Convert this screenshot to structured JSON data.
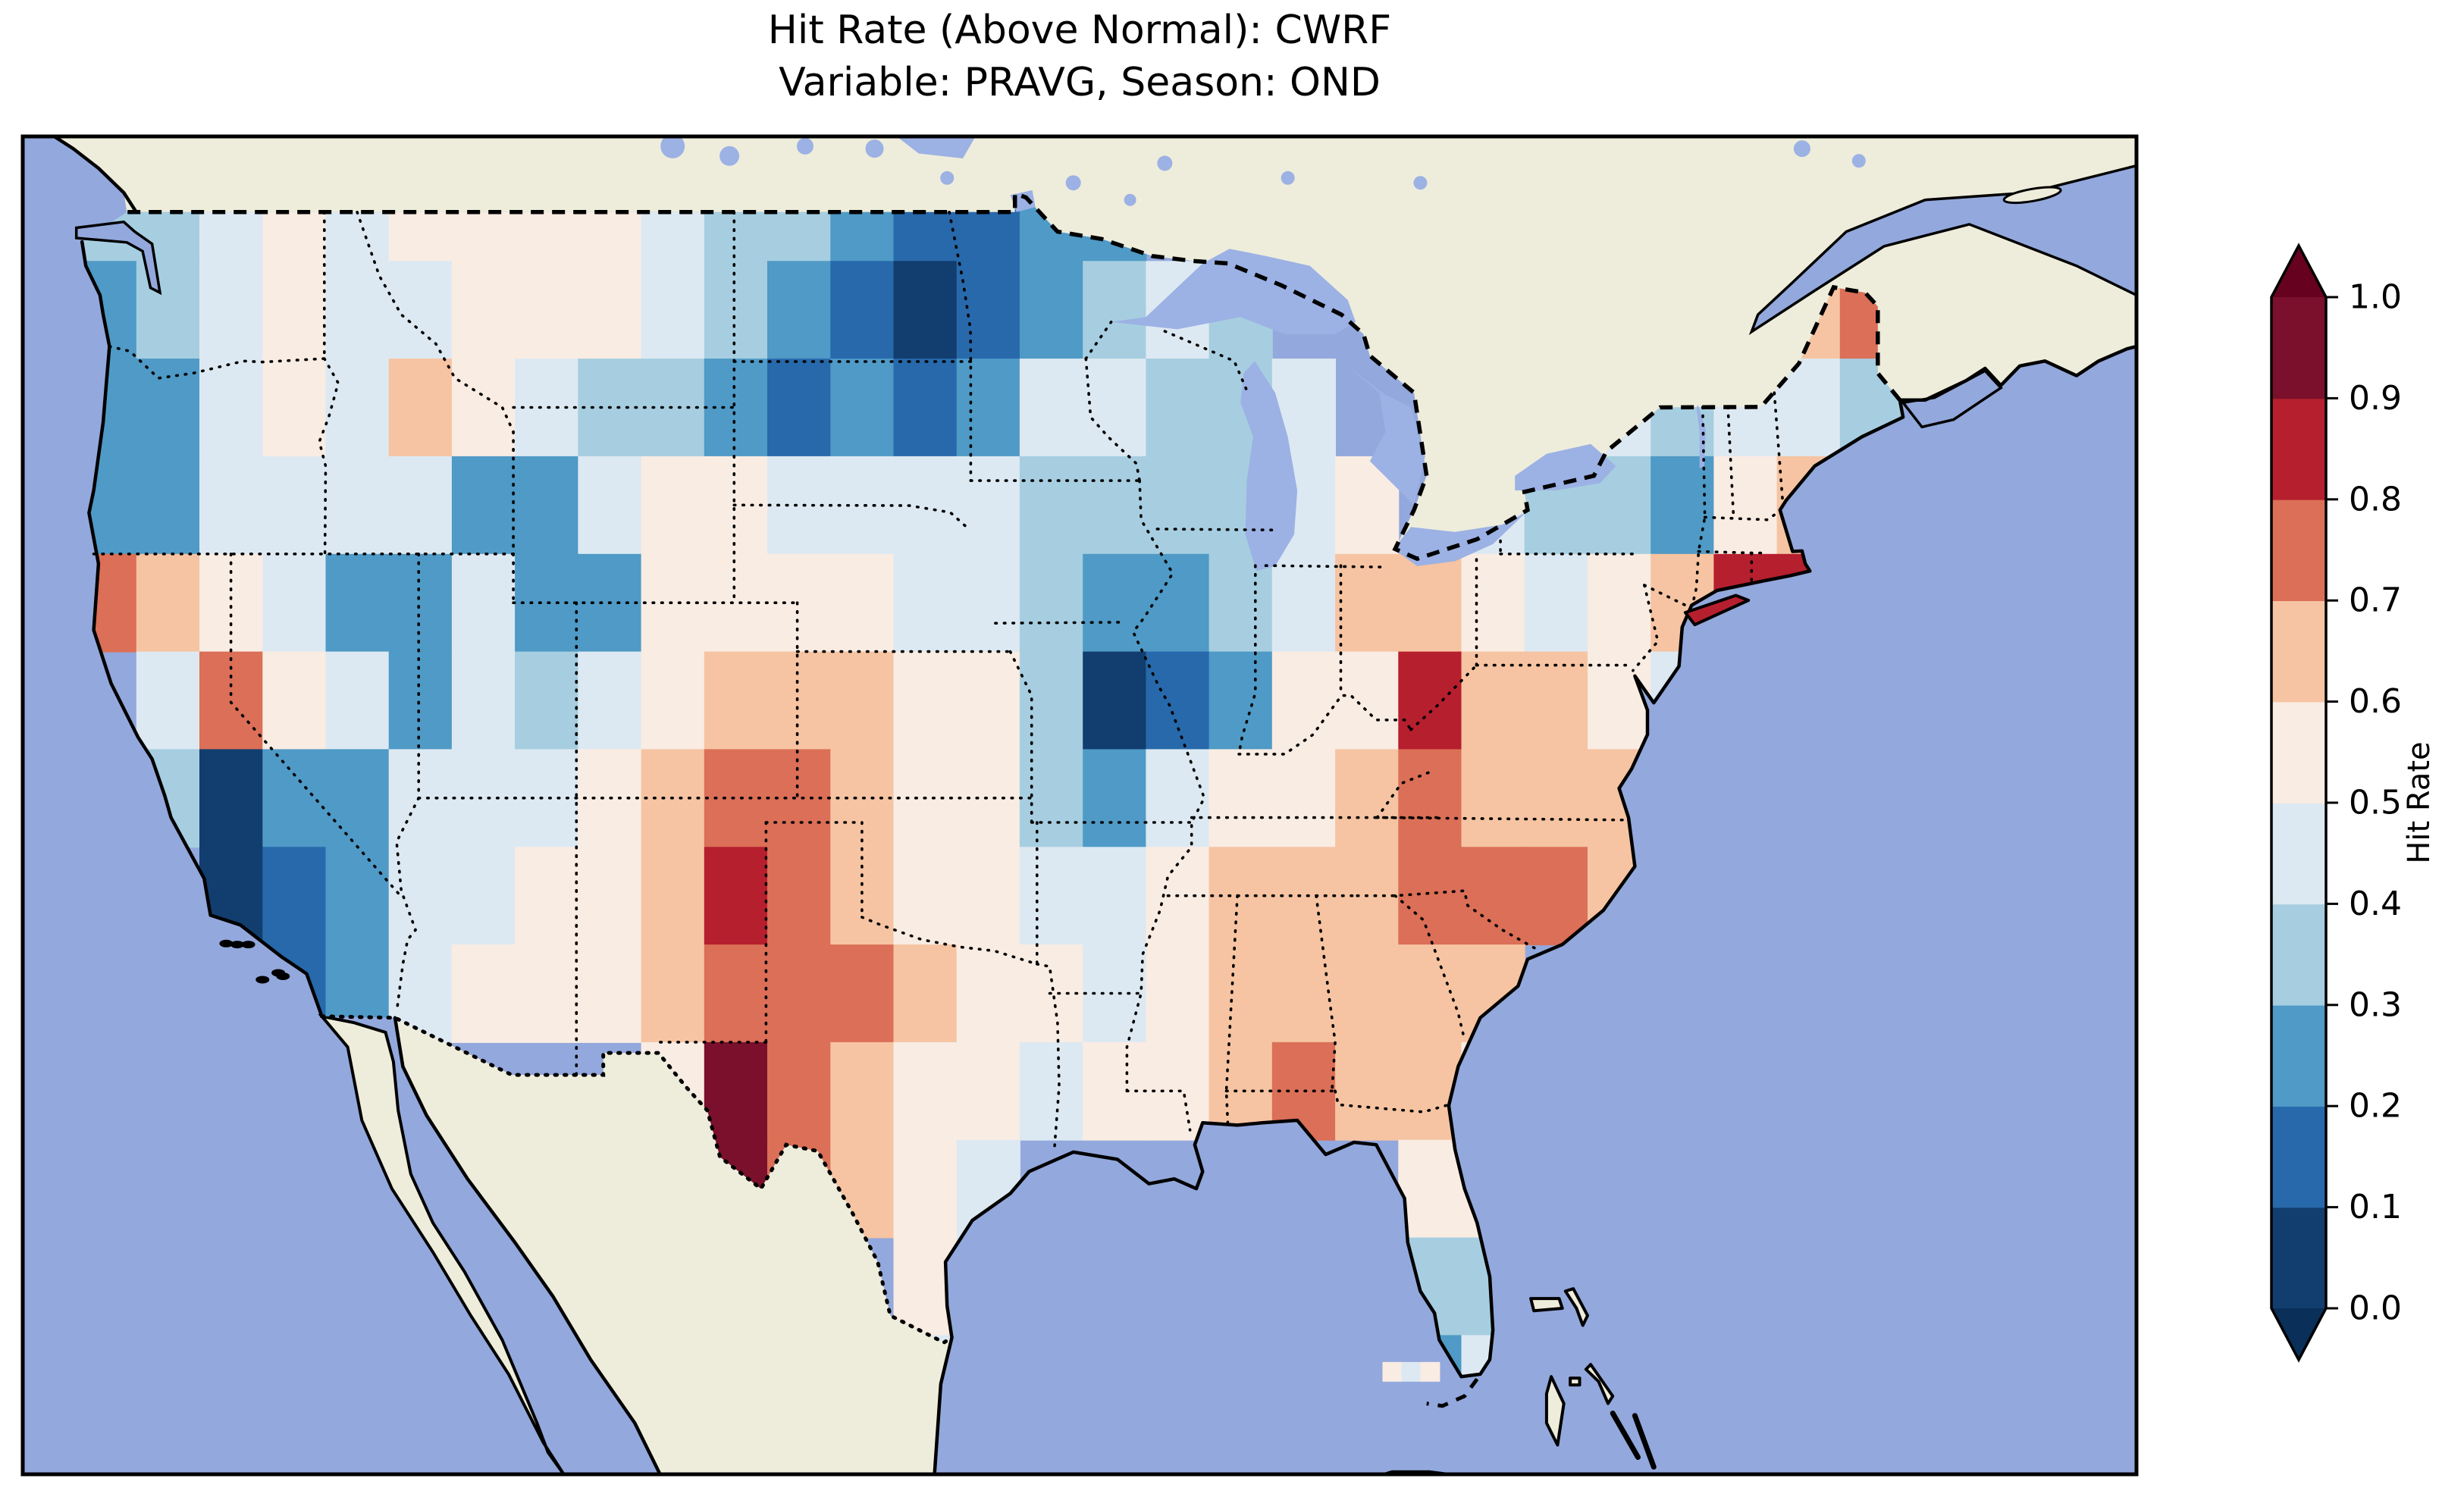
{
  "title": {
    "line1": "Hit Rate (Above Normal): CWRF",
    "line2": "Variable: PRAVG, Season: OND"
  },
  "chart_data": {
    "type": "heatmap",
    "title": "Hit Rate (Above Normal): CWRF",
    "subtitle": "Variable: PRAVG, Season: OND",
    "model": "CWRF",
    "variable": "PRAVG",
    "season": "OND",
    "metric": "Hit Rate (Above Normal)",
    "colorbar": {
      "label": "Hit Rate",
      "ticks": [
        "0.0",
        "0.1",
        "0.2",
        "0.3",
        "0.4",
        "0.5",
        "0.6",
        "0.7",
        "0.8",
        "0.9",
        "1.0"
      ],
      "range": [
        0.0,
        1.0
      ],
      "extend": "both",
      "orientation": "vertical",
      "position": "right"
    },
    "colormap": {
      "name": "RdBu_r discrete, 0.1 bins",
      "bin_edges": [
        0.0,
        0.1,
        0.2,
        0.3,
        0.4,
        0.5,
        0.6,
        0.7,
        0.8,
        0.9,
        1.0
      ],
      "bin_colors": [
        "#113e6e",
        "#2769ab",
        "#4f9ac6",
        "#a6cee0",
        "#dde9f2",
        "#f9ece3",
        "#f6c4a2",
        "#db6f57",
        "#b61f2e",
        "#7a102c"
      ],
      "under_color": "#0a2f58",
      "over_color": "#670120"
    },
    "map_colors": {
      "ocean": "#93a8dc",
      "land_outside_us": "#eeeddb",
      "lakes": "#9cb1e4",
      "coastline": "#000000"
    },
    "grid": {
      "description": "Hit rate estimated per 2-degree cell over CONUS, read from the pcolormesh (null = outside US / no data)",
      "lon_start": -125,
      "lon_step": 2,
      "n_cols": 29,
      "lat_start": 50,
      "lat_step": -2,
      "n_rows": 13,
      "values": [
        [
          0.35,
          0.35,
          0.45,
          0.55,
          0.45,
          0.55,
          0.55,
          0.55,
          0.55,
          0.45,
          0.35,
          0.35,
          0.25,
          0.15,
          0.15,
          0.25,
          0.25,
          null,
          null,
          null,
          null,
          null,
          null,
          null,
          null,
          null,
          null,
          null,
          null
        ],
        [
          0.25,
          0.35,
          0.45,
          0.55,
          0.45,
          0.45,
          0.55,
          0.55,
          0.55,
          0.45,
          0.35,
          0.25,
          0.15,
          0.05,
          0.15,
          0.25,
          0.35,
          0.45,
          0.35,
          null,
          null,
          null,
          null,
          null,
          null,
          null,
          null,
          0.65,
          0.75
        ],
        [
          0.25,
          0.25,
          0.45,
          0.55,
          0.45,
          0.65,
          0.55,
          0.45,
          0.35,
          0.35,
          0.25,
          0.15,
          0.25,
          0.15,
          0.25,
          0.45,
          0.45,
          0.35,
          0.35,
          0.45,
          null,
          null,
          null,
          0.45,
          0.45,
          0.35,
          0.45,
          0.45,
          0.35
        ],
        [
          0.25,
          0.25,
          0.45,
          0.45,
          0.45,
          0.45,
          0.25,
          0.25,
          0.45,
          0.55,
          0.55,
          0.45,
          0.45,
          0.45,
          0.45,
          0.35,
          0.35,
          0.35,
          0.35,
          0.45,
          0.55,
          null,
          0.45,
          0.35,
          0.35,
          0.25,
          0.55,
          0.65,
          null
        ],
        [
          0.75,
          0.65,
          0.55,
          0.45,
          0.25,
          0.25,
          0.45,
          0.25,
          0.25,
          0.55,
          0.55,
          0.55,
          0.55,
          0.45,
          0.45,
          0.35,
          0.25,
          0.25,
          0.35,
          0.45,
          0.65,
          0.65,
          0.55,
          0.45,
          0.55,
          0.65,
          0.85,
          0.85,
          null
        ],
        [
          null,
          0.45,
          0.75,
          0.55,
          0.45,
          0.25,
          0.45,
          0.35,
          0.45,
          0.55,
          0.65,
          0.65,
          0.65,
          0.55,
          0.55,
          0.35,
          0.05,
          0.15,
          0.25,
          0.55,
          0.55,
          0.85,
          0.65,
          0.65,
          0.55,
          0.45,
          null,
          null,
          null
        ],
        [
          null,
          0.35,
          0.05,
          0.25,
          0.25,
          0.45,
          0.45,
          0.45,
          0.55,
          0.65,
          0.75,
          0.75,
          0.65,
          0.55,
          0.55,
          0.35,
          0.25,
          0.45,
          0.55,
          0.55,
          0.65,
          0.75,
          0.65,
          0.65,
          0.65,
          null,
          null,
          null,
          null
        ],
        [
          null,
          null,
          0.05,
          0.15,
          0.25,
          0.45,
          0.45,
          0.55,
          0.55,
          0.65,
          0.85,
          0.75,
          0.65,
          0.55,
          0.55,
          0.45,
          0.45,
          0.55,
          0.65,
          0.65,
          0.65,
          0.75,
          0.75,
          0.75,
          0.65,
          null,
          null,
          null,
          null
        ],
        [
          null,
          null,
          null,
          0.15,
          0.25,
          0.45,
          0.55,
          0.55,
          0.55,
          0.65,
          0.75,
          0.75,
          0.75,
          0.65,
          0.55,
          0.55,
          0.45,
          0.55,
          0.65,
          0.65,
          0.65,
          0.65,
          0.65,
          null,
          null,
          null,
          null,
          null,
          null
        ],
        [
          null,
          null,
          null,
          null,
          null,
          null,
          null,
          null,
          null,
          0.55,
          0.95,
          0.75,
          0.65,
          0.55,
          0.55,
          0.45,
          0.55,
          0.55,
          0.65,
          0.75,
          0.65,
          0.65,
          0.55,
          null,
          null,
          null,
          null,
          null,
          null
        ],
        [
          null,
          null,
          null,
          null,
          null,
          null,
          null,
          null,
          null,
          null,
          0.95,
          0.75,
          0.65,
          0.55,
          0.45,
          null,
          null,
          null,
          null,
          null,
          null,
          0.55,
          0.55,
          null,
          null,
          null,
          null,
          null,
          null
        ],
        [
          null,
          null,
          null,
          null,
          null,
          null,
          null,
          null,
          null,
          null,
          null,
          null,
          null,
          0.55,
          0.45,
          null,
          null,
          null,
          null,
          null,
          null,
          0.35,
          0.35,
          null,
          null,
          null,
          null,
          null,
          null
        ],
        [
          null,
          null,
          null,
          null,
          null,
          null,
          null,
          null,
          null,
          null,
          null,
          null,
          null,
          0.45,
          null,
          null,
          null,
          null,
          null,
          null,
          null,
          0.25,
          0.45,
          null,
          null,
          null,
          null,
          null,
          null
        ]
      ]
    },
    "notable_regions": [
      {
        "region": "Pacific Northwest coast (WA/OR)",
        "hit_rate": "0.2-0.3"
      },
      {
        "region": "Northern California coast",
        "hit_rate": "0.7-0.8"
      },
      {
        "region": "Southern / central California",
        "hit_rate": "0.0-0.2"
      },
      {
        "region": "Great Basin (NV/UT)",
        "hit_rate": "0.2-0.5"
      },
      {
        "region": "Eastern North Dakota / western Minnesota",
        "hit_rate": "0.0-0.2"
      },
      {
        "region": "Southwest Montana spot",
        "hit_rate": "0.6-0.8"
      },
      {
        "region": "Colorado - New Mexico - Texas panhandle corridor",
        "hit_rate": "0.6-0.9"
      },
      {
        "region": "Big Bend, West Texas",
        "hit_rate": "0.9-1.0"
      },
      {
        "region": "Central Missouri",
        "hit_rate": "0.0-0.1"
      },
      {
        "region": "Central Illinois",
        "hit_rate": "0.1-0.3"
      },
      {
        "region": "Eastern Kentucky spot",
        "hit_rate": "0.8-0.9"
      },
      {
        "region": "Southeast (GA/SC/AL/MS/TN)",
        "hit_rate": "0.6-0.8"
      },
      {
        "region": "South Florida",
        "hit_rate": "0.2-0.4"
      },
      {
        "region": "Southern New England coast (CT/RI/Long Island)",
        "hit_rate": "0.8-1.0"
      },
      {
        "region": "Northern Maine",
        "hit_rate": "0.7-0.8"
      }
    ]
  }
}
